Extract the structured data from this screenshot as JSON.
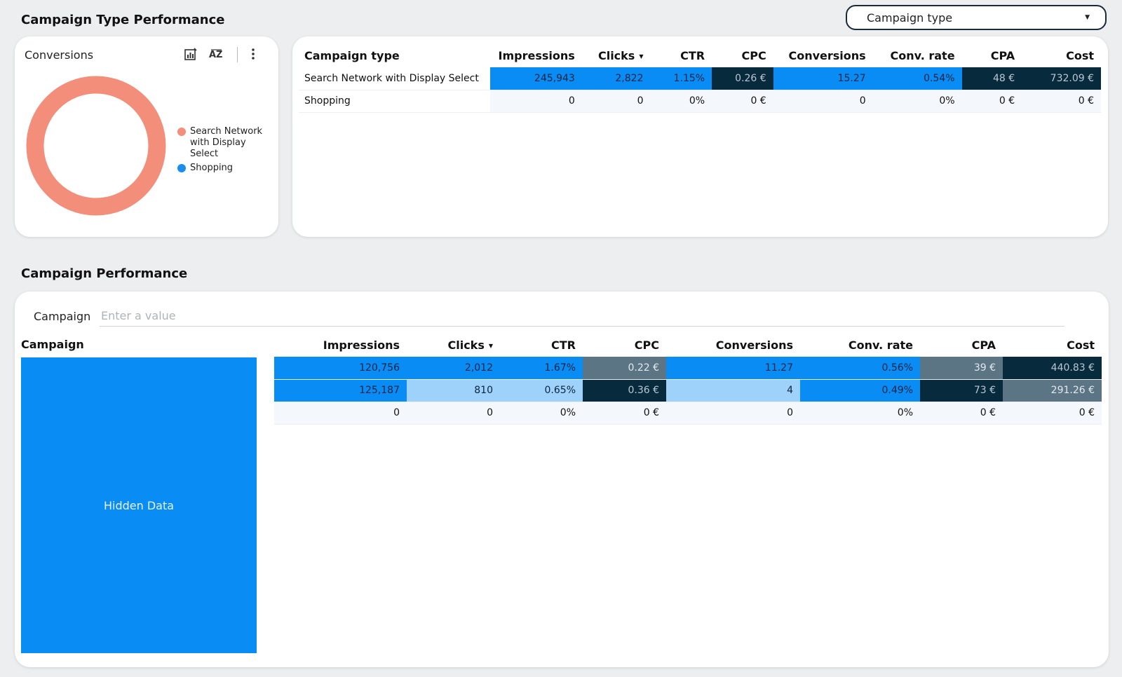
{
  "section1": {
    "title": "Campaign Type Performance"
  },
  "filter_dropdown": {
    "label": "Campaign type"
  },
  "donut_card": {
    "title": "Conversions",
    "icons": [
      "chart-edit-icon",
      "sort-az-icon",
      "more-vert-icon"
    ],
    "legend": [
      {
        "label": "Search Network with Display Select",
        "color": "#f28e79"
      },
      {
        "label": "Shopping",
        "color": "#1a8df2"
      }
    ],
    "chart_data": {
      "type": "pie",
      "categories": [
        "Search Network with Display Select",
        "Shopping"
      ],
      "values": [
        15.27,
        0
      ],
      "colors": [
        "#f28e79",
        "#1a8df2"
      ]
    }
  },
  "type_table": {
    "columns": [
      "Campaign type",
      "Impressions",
      "Clicks",
      "CTR",
      "CPC",
      "Conversions",
      "Conv. rate",
      "CPA",
      "Cost"
    ],
    "sort_column": "Clicks",
    "rows": [
      {
        "cells": [
          "Search Network with Display Select",
          "245,943",
          "2,822",
          "1.15%",
          "0.26 €",
          "15.27",
          "0.54%",
          "48 €",
          "732.09 €"
        ]
      },
      {
        "cells": [
          "Shopping",
          "0",
          "0",
          "0%",
          "0 €",
          "0",
          "0%",
          "0 €",
          "0 €"
        ]
      }
    ]
  },
  "section2": {
    "title": "Campaign Performance"
  },
  "campaign_filter": {
    "label": "Campaign",
    "placeholder": "Enter a value"
  },
  "campaign_table": {
    "first_column": "Campaign",
    "hidden_label": "Hidden Data",
    "columns": [
      "Impressions",
      "Clicks",
      "CTR",
      "CPC",
      "Conversions",
      "Conv. rate",
      "CPA",
      "Cost"
    ],
    "sort_column": "Clicks",
    "rows": [
      {
        "cells": [
          "120,756",
          "2,012",
          "1.67%",
          "0.22 €",
          "11.27",
          "0.56%",
          "39 €",
          "440.83 €"
        ]
      },
      {
        "cells": [
          "125,187",
          "810",
          "0.65%",
          "0.36 €",
          "4",
          "0.49%",
          "73 €",
          "291.26 €"
        ]
      },
      {
        "cells": [
          "0",
          "0",
          "0%",
          "0 €",
          "0",
          "0%",
          "0 €",
          "0 €"
        ]
      }
    ]
  }
}
